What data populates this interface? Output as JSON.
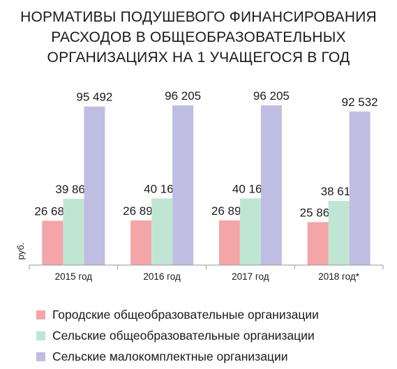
{
  "title_lines": [
    "НОРМАТИВЫ ПОДУШЕВОГО ФИНАНСИРОВАНИЯ",
    "РАСХОДОВ В ОБЩЕОБРАЗОВАТЕЛЬНЫХ",
    "ОРГАНИЗАЦИЯХ НА 1 УЧАЩЕГОСЯ В ГОД"
  ],
  "chart_data": {
    "type": "bar",
    "title": "НОРМАТИВЫ ПОДУШЕВОГО ФИНАНСИРОВАНИЯ РАСХОДОВ В ОБЩЕОБРАЗОВАТЕЛЬНЫХ ОРГАНИЗАЦИЯХ НА 1 УЧАЩЕГОСЯ В ГОД",
    "xlabel": "",
    "ylabel": "руб.",
    "categories": [
      "2015 год",
      "2016 год",
      "2017 год",
      "2018 год*"
    ],
    "series": [
      {
        "name": "Городские общеобразовательные организации",
        "values": [
          26689,
          26894,
          26894,
          25865
        ],
        "labels": [
          "26 689",
          "26 894",
          "26 894",
          "25 865"
        ],
        "color": "#f4a5a8"
      },
      {
        "name": "Сельские общеобразовательные организации",
        "values": [
          39864,
          40163,
          40163,
          38610
        ],
        "labels": [
          "39 864",
          "40 163",
          "40 163",
          "38 610"
        ],
        "color": "#bfe6d3"
      },
      {
        "name": "Сельские малокомплектные организации",
        "values": [
          95492,
          96205,
          96205,
          92532
        ],
        "labels": [
          "95 492",
          "96 205",
          "96 205",
          "92 532"
        ],
        "color": "#c0bde3"
      }
    ],
    "ylim": [
      0,
      100000
    ],
    "grid": false,
    "legend_position": "bottom"
  }
}
